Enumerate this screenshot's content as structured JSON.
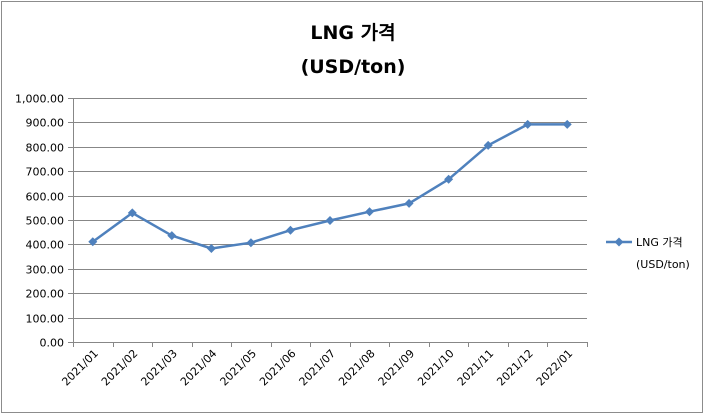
{
  "chart_data": {
    "type": "line",
    "title": "LNG 가격",
    "subtitle": "(USD/ton)",
    "categories": [
      "2021/01",
      "2021/02",
      "2021/03",
      "2021/04",
      "2021/05",
      "2021/06",
      "2021/07",
      "2021/08",
      "2021/09",
      "2021/10",
      "2021/11",
      "2021/12",
      "2022/01"
    ],
    "series": [
      {
        "name": "LNG 가격 (USD/ton)",
        "legend_lines": [
          "LNG 가격",
          "(USD/ton)"
        ],
        "color": "#4f81bd",
        "values": [
          411,
          529,
          436,
          383,
          407,
          458,
          498,
          534,
          568,
          667,
          806,
          892,
          892
        ]
      }
    ],
    "ylim": [
      0,
      1000
    ],
    "yticks": [
      "0.00",
      "100.00",
      "200.00",
      "300.00",
      "400.00",
      "500.00",
      "600.00",
      "700.00",
      "800.00",
      "900.00",
      "1,000.00"
    ],
    "grid": true,
    "legend_position": "right"
  }
}
